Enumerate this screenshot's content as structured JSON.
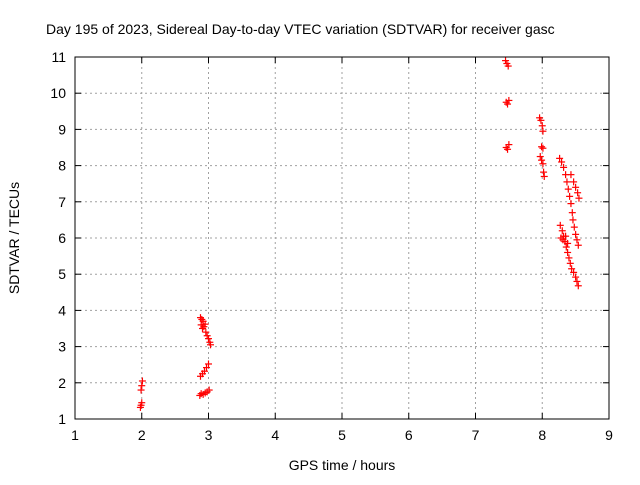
{
  "chart_data": {
    "type": "scatter",
    "title": "Day 195 of 2023, Sidereal Day-to-day VTEC variation (SDTVAR) for receiver gasc",
    "xlabel": "GPS time / hours",
    "ylabel": "SDTVAR / TECUs",
    "xlim": [
      1,
      9
    ],
    "ylim": [
      1,
      11
    ],
    "x_ticks": [
      "1",
      "2",
      "3",
      "4",
      "5",
      "6",
      "7",
      "8",
      "9"
    ],
    "y_ticks": [
      "1",
      "2",
      "3",
      "4",
      "5",
      "6",
      "7",
      "8",
      "9",
      "10",
      "11"
    ],
    "grid": true,
    "marker_color": "#ff0000",
    "series": [
      {
        "name": "SDTVAR",
        "points": [
          [
            1.98,
            1.32
          ],
          [
            1.99,
            1.38
          ],
          [
            2.0,
            1.45
          ],
          [
            1.99,
            1.8
          ],
          [
            2.0,
            1.92
          ],
          [
            2.01,
            2.05
          ],
          [
            2.87,
            1.65
          ],
          [
            2.89,
            1.7
          ],
          [
            2.92,
            1.68
          ],
          [
            2.95,
            1.72
          ],
          [
            2.98,
            1.75
          ],
          [
            3.01,
            1.8
          ],
          [
            2.88,
            2.18
          ],
          [
            2.91,
            2.25
          ],
          [
            2.94,
            2.32
          ],
          [
            2.97,
            2.42
          ],
          [
            3.0,
            2.52
          ],
          [
            2.88,
            3.8
          ],
          [
            2.9,
            3.75
          ],
          [
            2.92,
            3.7
          ],
          [
            2.89,
            3.6
          ],
          [
            2.91,
            3.5
          ],
          [
            2.93,
            3.55
          ],
          [
            2.95,
            3.62
          ],
          [
            2.96,
            3.4
          ],
          [
            2.98,
            3.3
          ],
          [
            3.0,
            3.22
          ],
          [
            3.02,
            3.12
          ],
          [
            3.03,
            3.05
          ],
          [
            7.45,
            10.9
          ],
          [
            7.47,
            10.82
          ],
          [
            7.49,
            10.75
          ],
          [
            7.46,
            9.75
          ],
          [
            7.48,
            9.7
          ],
          [
            7.5,
            9.8
          ],
          [
            7.46,
            8.5
          ],
          [
            7.48,
            8.45
          ],
          [
            7.5,
            8.58
          ],
          [
            7.96,
            9.32
          ],
          [
            7.98,
            9.25
          ],
          [
            8.0,
            9.1
          ],
          [
            8.01,
            8.95
          ],
          [
            7.97,
            8.25
          ],
          [
            7.99,
            8.15
          ],
          [
            8.01,
            8.05
          ],
          [
            7.99,
            8.52
          ],
          [
            8.01,
            8.48
          ],
          [
            8.02,
            7.82
          ],
          [
            8.03,
            7.7
          ],
          [
            8.26,
            8.2
          ],
          [
            8.29,
            8.1
          ],
          [
            8.32,
            7.95
          ],
          [
            8.35,
            7.75
          ],
          [
            8.37,
            7.55
          ],
          [
            8.39,
            7.35
          ],
          [
            8.41,
            7.15
          ],
          [
            8.43,
            6.95
          ],
          [
            8.45,
            6.7
          ],
          [
            8.46,
            6.5
          ],
          [
            8.48,
            6.3
          ],
          [
            8.5,
            6.1
          ],
          [
            8.52,
            5.95
          ],
          [
            8.54,
            5.8
          ],
          [
            8.43,
            7.75
          ],
          [
            8.47,
            7.55
          ],
          [
            8.5,
            7.4
          ],
          [
            8.53,
            7.25
          ],
          [
            8.55,
            7.1
          ],
          [
            8.27,
            6.35
          ],
          [
            8.3,
            6.2
          ],
          [
            8.32,
            6.05
          ],
          [
            8.34,
            5.9
          ],
          [
            8.36,
            5.75
          ],
          [
            8.38,
            5.6
          ],
          [
            8.4,
            5.45
          ],
          [
            8.42,
            5.3
          ],
          [
            8.44,
            5.15
          ],
          [
            8.47,
            5.05
          ],
          [
            8.5,
            4.92
          ],
          [
            8.52,
            4.8
          ],
          [
            8.54,
            4.68
          ],
          [
            8.28,
            6.0
          ],
          [
            8.31,
            5.95
          ],
          [
            8.35,
            6.05
          ],
          [
            8.38,
            5.85
          ]
        ]
      }
    ]
  }
}
